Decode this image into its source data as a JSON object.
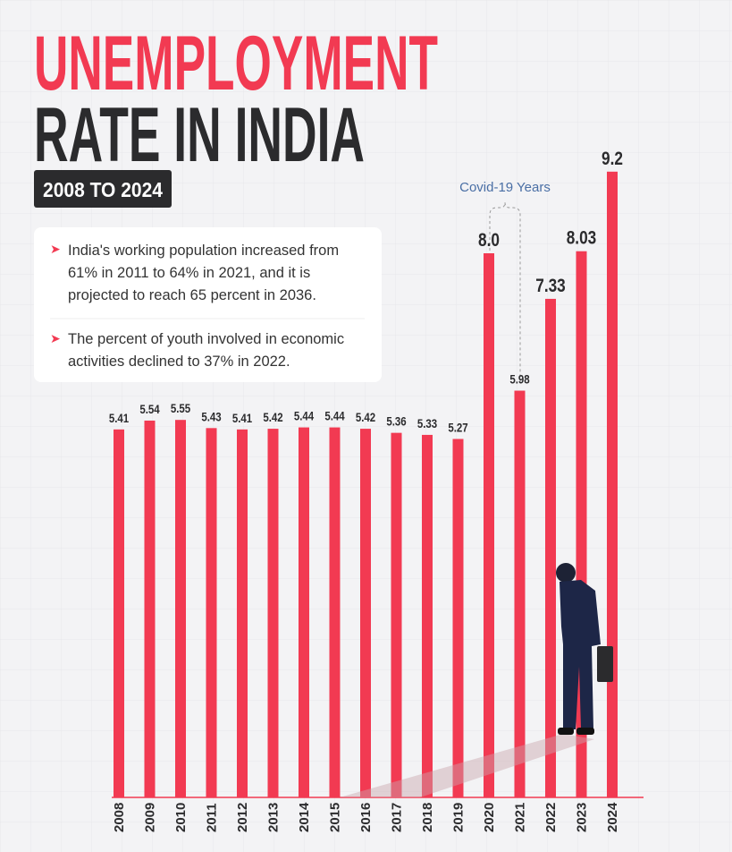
{
  "chart_data": {
    "type": "bar",
    "title": [
      "UNEMPLOYMENT",
      "RATE IN INDIA"
    ],
    "subtitle": "2008 TO 2024",
    "notes": [
      "India's working population increased from 61% in 2011 to 64% in 2021, and it is projected to reach 65 percent in 2036.",
      "The percent of youth involved in economic activities declined to 37% in 2022."
    ],
    "annotation": "Covid-19 Years",
    "categories": [
      "2008",
      "2009",
      "2010",
      "2011",
      "2012",
      "2013",
      "2014",
      "2015",
      "2016",
      "2017",
      "2018",
      "2019",
      "2020",
      "2021",
      "2022",
      "2023",
      "2024"
    ],
    "values": [
      5.41,
      5.54,
      5.55,
      5.43,
      5.41,
      5.42,
      5.44,
      5.44,
      5.42,
      5.36,
      5.33,
      5.27,
      8.0,
      5.98,
      7.33,
      8.03,
      9.2
    ],
    "value_labels": [
      "5.41",
      "5.54",
      "5.55",
      "5.43",
      "5.41",
      "5.42",
      "5.44",
      "5.44",
      "5.42",
      "5.36",
      "5.33",
      "5.27",
      "8.0",
      "5.98",
      "7.33",
      "8.03",
      "9.2"
    ],
    "color": "#f23a52",
    "ylim": [
      0,
      10
    ]
  }
}
